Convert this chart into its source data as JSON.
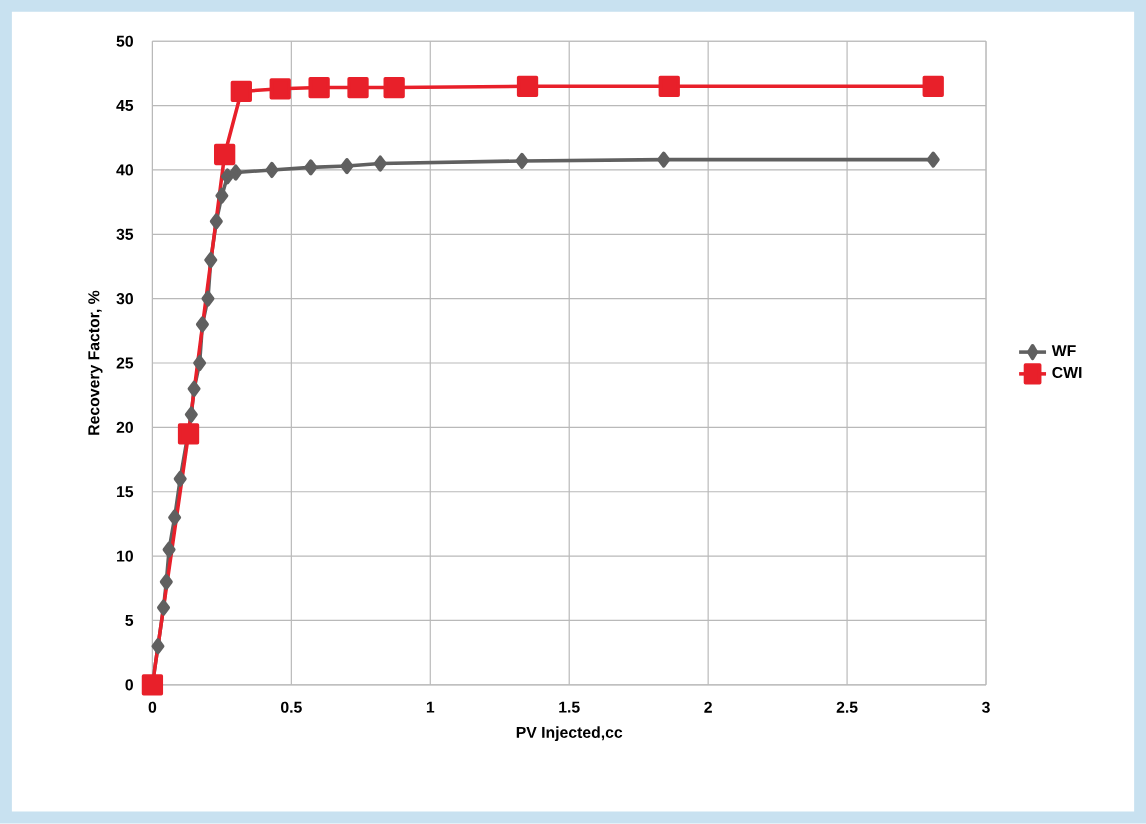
{
  "chart_data": {
    "type": "line",
    "xlabel": "PV Injected,cc",
    "ylabel": "Recovery Factor, %",
    "xlim": [
      0,
      3
    ],
    "xticks": [
      0,
      0.5,
      1,
      1.5,
      2,
      2.5,
      3
    ],
    "ylim": [
      0,
      50
    ],
    "yticks": [
      0,
      5,
      10,
      15,
      20,
      25,
      30,
      35,
      40,
      45,
      50
    ],
    "grid": true,
    "legend": "right",
    "line_style": "solid",
    "series": [
      {
        "name": "WF",
        "color": "#606060",
        "marker": "diamond",
        "x": [
          0,
          0.02,
          0.04,
          0.05,
          0.06,
          0.08,
          0.1,
          0.12,
          0.14,
          0.15,
          0.17,
          0.18,
          0.2,
          0.21,
          0.23,
          0.25,
          0.27,
          0.3,
          0.43,
          0.57,
          0.7,
          0.82,
          1.33,
          1.84,
          2.81
        ],
        "values": [
          0,
          3,
          6,
          8,
          10.5,
          13,
          16,
          null,
          21,
          23,
          25,
          28,
          30,
          33,
          36,
          38,
          39.5,
          39.8,
          40,
          40.2,
          40.3,
          40.5,
          40.7,
          40.8,
          40.8
        ]
      },
      {
        "name": "CWI",
        "color": "#e8202a",
        "marker": "square",
        "x": [
          0,
          0.13,
          0.26,
          0.32,
          0.46,
          0.6,
          0.74,
          0.87,
          1.35,
          1.86,
          2.81
        ],
        "values": [
          0,
          19.5,
          41.2,
          46.1,
          46.3,
          46.4,
          46.4,
          46.4,
          46.5,
          46.5,
          46.5
        ]
      }
    ]
  }
}
